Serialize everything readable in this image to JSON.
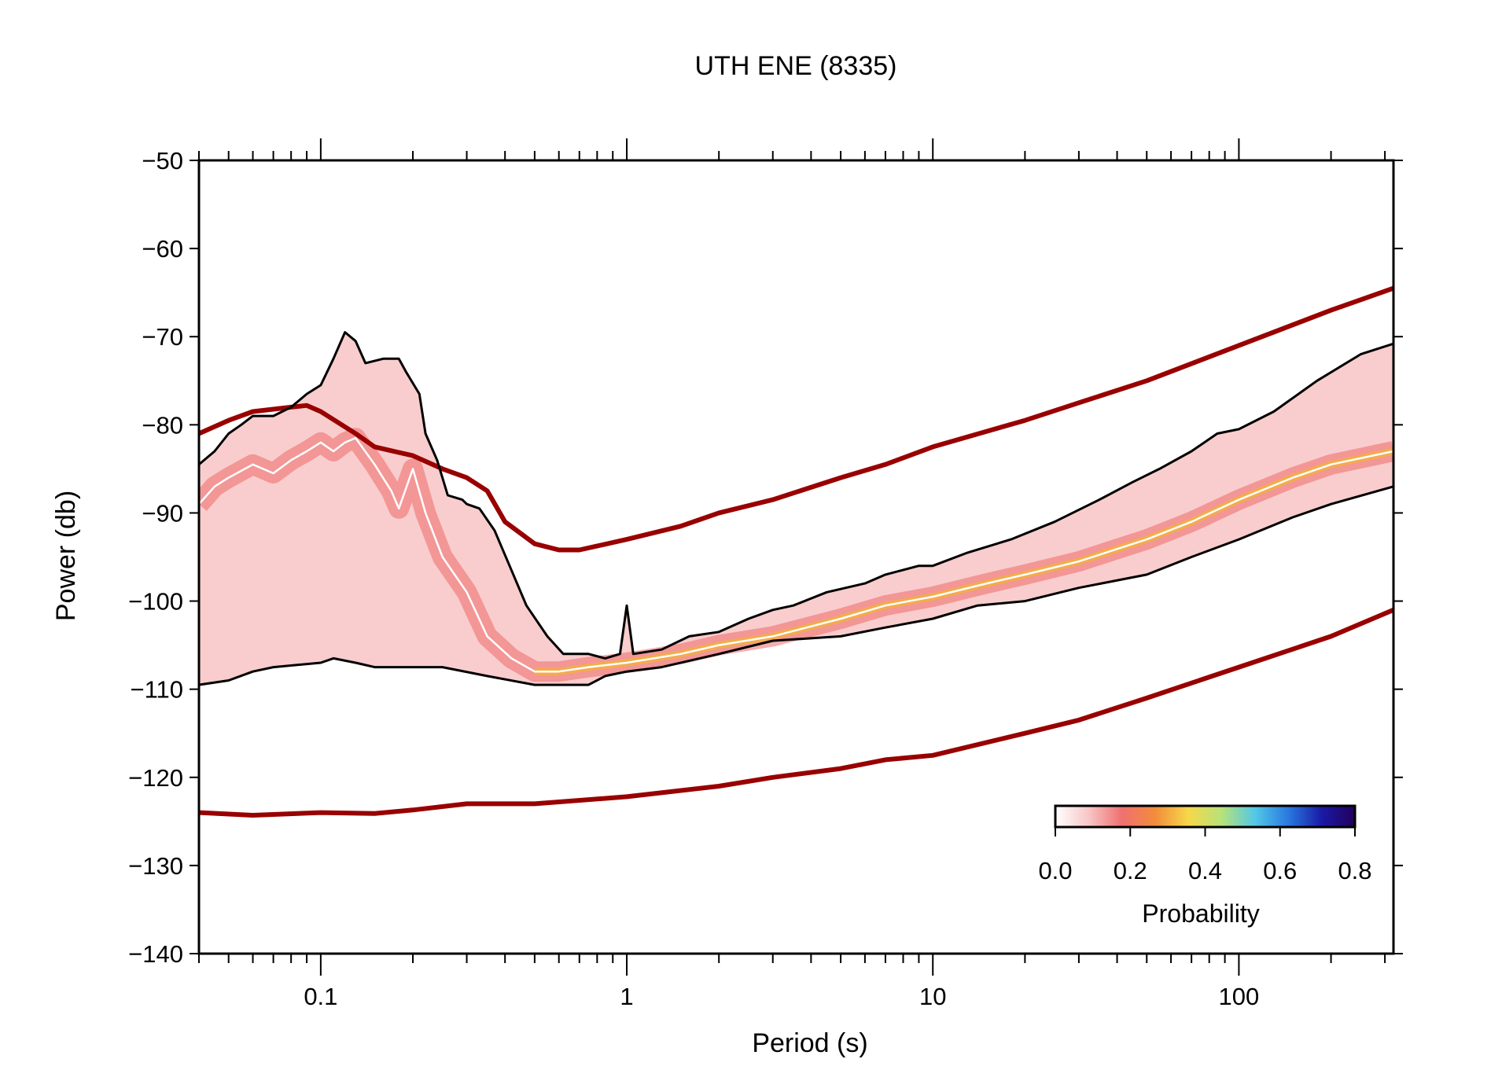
{
  "chart_data": {
    "type": "line",
    "title": "UTH ENE (8335)",
    "xlabel": "Period (s)",
    "ylabel": "Power (db)",
    "x_scale": "log",
    "xlim": [
      0.04,
      320
    ],
    "ylim": [
      -140,
      -50
    ],
    "x_ticks": [
      0.1,
      1,
      10,
      100
    ],
    "x_tick_labels": [
      "0.1",
      "1",
      "10",
      "100"
    ],
    "y_ticks": [
      -50,
      -60,
      -70,
      -80,
      -90,
      -100,
      -110,
      -120,
      -130,
      -140
    ],
    "y_tick_labels": [
      "−50",
      "−60",
      "−70",
      "−80",
      "−90",
      "−100",
      "−110",
      "−120",
      "−130",
      "−140"
    ],
    "grid": false,
    "series": [
      {
        "key": "nhnm",
        "color": "#990000",
        "points": [
          [
            0.04,
            -81
          ],
          [
            0.05,
            -79.5
          ],
          [
            0.06,
            -78.5
          ],
          [
            0.08,
            -78
          ],
          [
            0.09,
            -77.8
          ],
          [
            0.1,
            -78.5
          ],
          [
            0.13,
            -81
          ],
          [
            0.15,
            -82.5
          ],
          [
            0.2,
            -83.5
          ],
          [
            0.25,
            -85
          ],
          [
            0.3,
            -86
          ],
          [
            0.35,
            -87.5
          ],
          [
            0.4,
            -91
          ],
          [
            0.5,
            -93.5
          ],
          [
            0.6,
            -94.2
          ],
          [
            0.7,
            -94.2
          ],
          [
            1,
            -93
          ],
          [
            1.5,
            -91.5
          ],
          [
            2,
            -90
          ],
          [
            3,
            -88.5
          ],
          [
            5,
            -86
          ],
          [
            7,
            -84.5
          ],
          [
            10,
            -82.5
          ],
          [
            20,
            -79.5
          ],
          [
            30,
            -77.5
          ],
          [
            50,
            -75
          ],
          [
            100,
            -71
          ],
          [
            200,
            -67
          ],
          [
            320,
            -64.5
          ]
        ]
      },
      {
        "key": "nlnm",
        "color": "#990000",
        "points": [
          [
            0.04,
            -124
          ],
          [
            0.06,
            -124.3
          ],
          [
            0.1,
            -124
          ],
          [
            0.15,
            -124.1
          ],
          [
            0.2,
            -123.7
          ],
          [
            0.3,
            -123
          ],
          [
            0.5,
            -123
          ],
          [
            1,
            -122.2
          ],
          [
            2,
            -121
          ],
          [
            3,
            -120
          ],
          [
            5,
            -119
          ],
          [
            7,
            -118
          ],
          [
            10,
            -117.5
          ],
          [
            20,
            -115
          ],
          [
            30,
            -113.5
          ],
          [
            50,
            -111
          ],
          [
            100,
            -107.5
          ],
          [
            200,
            -104
          ],
          [
            320,
            -101
          ]
        ]
      },
      {
        "key": "p90",
        "color": "#000000",
        "points": [
          [
            0.04,
            -84.5
          ],
          [
            0.045,
            -83
          ],
          [
            0.05,
            -81
          ],
          [
            0.055,
            -80
          ],
          [
            0.06,
            -79
          ],
          [
            0.07,
            -79
          ],
          [
            0.08,
            -78
          ],
          [
            0.09,
            -76.5
          ],
          [
            0.1,
            -75.5
          ],
          [
            0.11,
            -72.5
          ],
          [
            0.12,
            -69.5
          ],
          [
            0.13,
            -70.5
          ],
          [
            0.14,
            -73
          ],
          [
            0.16,
            -72.5
          ],
          [
            0.18,
            -72.5
          ],
          [
            0.19,
            -74
          ],
          [
            0.21,
            -76.5
          ],
          [
            0.22,
            -81
          ],
          [
            0.24,
            -84
          ],
          [
            0.26,
            -88
          ],
          [
            0.29,
            -88.5
          ],
          [
            0.3,
            -89
          ],
          [
            0.33,
            -89.5
          ],
          [
            0.37,
            -92
          ],
          [
            0.42,
            -96.5
          ],
          [
            0.47,
            -100.5
          ],
          [
            0.55,
            -104
          ],
          [
            0.62,
            -106
          ],
          [
            0.75,
            -106
          ],
          [
            0.85,
            -106.5
          ],
          [
            0.95,
            -106
          ],
          [
            1,
            -100.5
          ],
          [
            1.05,
            -106
          ],
          [
            1.3,
            -105.5
          ],
          [
            1.6,
            -104
          ],
          [
            2,
            -103.5
          ],
          [
            2.5,
            -102
          ],
          [
            3,
            -101
          ],
          [
            3.5,
            -100.5
          ],
          [
            4.5,
            -99
          ],
          [
            6,
            -98
          ],
          [
            7,
            -97
          ],
          [
            9,
            -96
          ],
          [
            10,
            -96
          ],
          [
            13,
            -94.5
          ],
          [
            18,
            -93
          ],
          [
            25,
            -91
          ],
          [
            35,
            -88.5
          ],
          [
            45,
            -86.5
          ],
          [
            55,
            -85
          ],
          [
            70,
            -83
          ],
          [
            85,
            -81
          ],
          [
            100,
            -80.5
          ],
          [
            130,
            -78.5
          ],
          [
            180,
            -75
          ],
          [
            250,
            -72
          ],
          [
            320,
            -70.8
          ]
        ]
      },
      {
        "key": "p10",
        "color": "#000000",
        "points": [
          [
            0.04,
            -109.5
          ],
          [
            0.05,
            -109
          ],
          [
            0.06,
            -108
          ],
          [
            0.07,
            -107.5
          ],
          [
            0.1,
            -107
          ],
          [
            0.11,
            -106.5
          ],
          [
            0.13,
            -107
          ],
          [
            0.15,
            -107.5
          ],
          [
            0.25,
            -107.5
          ],
          [
            0.35,
            -108.5
          ],
          [
            0.5,
            -109.5
          ],
          [
            0.75,
            -109.5
          ],
          [
            0.85,
            -108.5
          ],
          [
            1,
            -108
          ],
          [
            1.3,
            -107.5
          ],
          [
            2,
            -106
          ],
          [
            3,
            -104.5
          ],
          [
            5,
            -104
          ],
          [
            7,
            -103
          ],
          [
            10,
            -102
          ],
          [
            14,
            -100.5
          ],
          [
            20,
            -100
          ],
          [
            30,
            -98.5
          ],
          [
            50,
            -97
          ],
          [
            70,
            -95
          ],
          [
            100,
            -93
          ],
          [
            150,
            -90.5
          ],
          [
            200,
            -89
          ],
          [
            320,
            -87
          ]
        ]
      },
      {
        "key": "mode",
        "color": "#ffffff",
        "points": [
          [
            0.04,
            -89
          ],
          [
            0.045,
            -87
          ],
          [
            0.05,
            -86
          ],
          [
            0.06,
            -84.5
          ],
          [
            0.07,
            -85.5
          ],
          [
            0.08,
            -84
          ],
          [
            0.09,
            -83
          ],
          [
            0.1,
            -82
          ],
          [
            0.11,
            -83
          ],
          [
            0.12,
            -82
          ],
          [
            0.13,
            -81.5
          ],
          [
            0.15,
            -84.5
          ],
          [
            0.17,
            -87.5
          ],
          [
            0.18,
            -89.5
          ],
          [
            0.2,
            -85
          ],
          [
            0.22,
            -90
          ],
          [
            0.25,
            -95
          ],
          [
            0.3,
            -99
          ],
          [
            0.35,
            -104
          ],
          [
            0.42,
            -106.5
          ],
          [
            0.5,
            -108
          ],
          [
            0.6,
            -108
          ],
          [
            0.75,
            -107.5
          ],
          [
            1,
            -107
          ],
          [
            1.5,
            -106
          ],
          [
            2,
            -105
          ],
          [
            3,
            -104
          ],
          [
            5,
            -102
          ],
          [
            7,
            -100.5
          ],
          [
            10,
            -99.5
          ],
          [
            15,
            -98
          ],
          [
            20,
            -97
          ],
          [
            30,
            -95.5
          ],
          [
            50,
            -93
          ],
          [
            70,
            -91
          ],
          [
            100,
            -88.5
          ],
          [
            150,
            -86
          ],
          [
            200,
            -84.5
          ],
          [
            320,
            -83
          ]
        ]
      }
    ],
    "colorbar": {
      "label": "Probability",
      "range": [
        0.0,
        0.8
      ],
      "tick_labels": [
        "0.0",
        "0.2",
        "0.4",
        "0.6",
        "0.8"
      ],
      "colors": [
        "#ffffff",
        "#f7c6c6",
        "#f07070",
        "#f28c3c",
        "#f6d84a",
        "#b6e27a",
        "#52c8e6",
        "#2a78e0",
        "#1a1aa6",
        "#22005a"
      ]
    }
  }
}
